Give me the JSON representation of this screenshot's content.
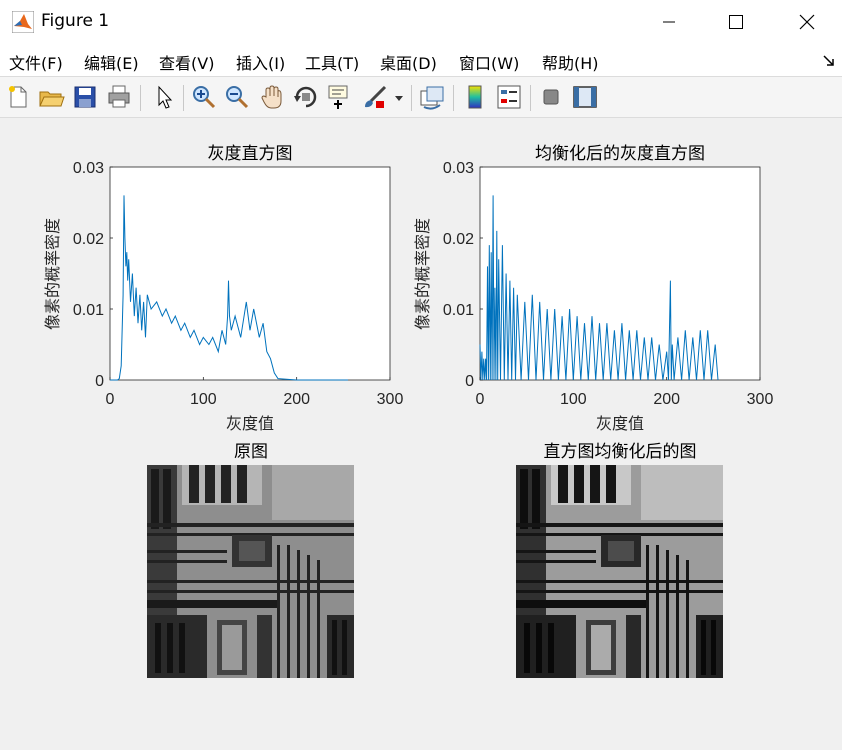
{
  "window": {
    "title": "Figure 1"
  },
  "menu": [
    {
      "label": "文件(F)"
    },
    {
      "label": "编辑(E)"
    },
    {
      "label": "查看(V)"
    },
    {
      "label": "插入(I)"
    },
    {
      "label": "工具(T)"
    },
    {
      "label": "桌面(D)"
    },
    {
      "label": "窗口(W)"
    },
    {
      "label": "帮助(H)"
    }
  ],
  "toolbar": [
    {
      "icon": "new-figure-icon"
    },
    {
      "icon": "open-file-icon"
    },
    {
      "icon": "save-icon"
    },
    {
      "icon": "print-icon"
    },
    {
      "icon": "select-pointer-icon"
    },
    {
      "icon": "zoom-in-icon"
    },
    {
      "icon": "zoom-out-icon"
    },
    {
      "icon": "pan-hand-icon"
    },
    {
      "icon": "rotate-3d-icon"
    },
    {
      "icon": "data-cursor-icon"
    },
    {
      "icon": "brush-icon"
    },
    {
      "icon": "link-plot-icon"
    },
    {
      "icon": "colorbar-icon"
    },
    {
      "icon": "legend-icon"
    },
    {
      "icon": "hide-plot-tools-icon"
    },
    {
      "icon": "show-plot-tools-icon"
    }
  ],
  "colors": {
    "line": "#0072bd",
    "axes_bg": "#ffffff",
    "figure_bg": "#f0f0f0"
  },
  "chart_data": [
    {
      "type": "line",
      "title": "灰度直方图",
      "xlabel": "灰度值",
      "ylabel": "像素的概率密度",
      "xlim": [
        0,
        300
      ],
      "ylim": [
        0,
        0.03
      ],
      "xticks": [
        "0",
        "100",
        "200",
        "300"
      ],
      "yticks": [
        "0",
        "0.01",
        "0.02",
        "0.03"
      ],
      "x": [
        0,
        8,
        10,
        12,
        14,
        15,
        16,
        17,
        18,
        19,
        20,
        22,
        24,
        26,
        28,
        30,
        32,
        34,
        36,
        38,
        40,
        44,
        50,
        56,
        60,
        66,
        70,
        76,
        80,
        86,
        90,
        96,
        100,
        106,
        110,
        116,
        120,
        124,
        126,
        127,
        128,
        130,
        134,
        140,
        146,
        150,
        154,
        160,
        164,
        168,
        172,
        176,
        180,
        200,
        255
      ],
      "y": [
        0,
        0,
        0.0002,
        0.002,
        0.012,
        0.026,
        0.02,
        0.016,
        0.018,
        0.014,
        0.017,
        0.011,
        0.015,
        0.009,
        0.013,
        0.008,
        0.012,
        0.007,
        0.011,
        0.006,
        0.012,
        0.01,
        0.011,
        0.009,
        0.01,
        0.008,
        0.009,
        0.007,
        0.008,
        0.006,
        0.007,
        0.005,
        0.006,
        0.005,
        0.006,
        0.004,
        0.007,
        0.005,
        0.009,
        0.014,
        0.009,
        0.007,
        0.009,
        0.006,
        0.011,
        0.007,
        0.01,
        0.006,
        0.008,
        0.004,
        0.003,
        0.001,
        0.0002,
        0,
        0
      ]
    },
    {
      "type": "line",
      "title": "均衡化后的灰度直方图",
      "xlabel": "灰度值",
      "ylabel": "像素的概率密度",
      "xlim": [
        0,
        300
      ],
      "ylim": [
        0,
        0.03
      ],
      "xticks": [
        "0",
        "100",
        "200",
        "300"
      ],
      "yticks": [
        "0",
        "0.01",
        "0.02",
        "0.03"
      ],
      "x": [
        0,
        1,
        2,
        3,
        4,
        5,
        6,
        7,
        8,
        9,
        10,
        11,
        12,
        13,
        14,
        15,
        16,
        17,
        18,
        19,
        20,
        22,
        24,
        26,
        28,
        30,
        32,
        34,
        36,
        38,
        40,
        44,
        48,
        52,
        56,
        60,
        64,
        68,
        72,
        76,
        80,
        84,
        88,
        92,
        96,
        100,
        104,
        108,
        112,
        116,
        120,
        124,
        128,
        132,
        136,
        140,
        144,
        148,
        152,
        156,
        160,
        164,
        168,
        172,
        176,
        180,
        184,
        188,
        192,
        196,
        200,
        202,
        204,
        205,
        206,
        208,
        212,
        216,
        220,
        224,
        228,
        232,
        236,
        240,
        244,
        248,
        252,
        255
      ],
      "y": [
        0.005,
        0,
        0.004,
        0,
        0.003,
        0,
        0.003,
        0,
        0.016,
        0,
        0.019,
        0,
        0.018,
        0,
        0.026,
        0,
        0.013,
        0,
        0.021,
        0,
        0.017,
        0,
        0.019,
        0,
        0.015,
        0,
        0.014,
        0,
        0.013,
        0,
        0.012,
        0,
        0.011,
        0,
        0.012,
        0,
        0.011,
        0,
        0.01,
        0,
        0.01,
        0,
        0.009,
        0,
        0.01,
        0,
        0.009,
        0,
        0.008,
        0,
        0.009,
        0,
        0.008,
        0,
        0.008,
        0,
        0.007,
        0,
        0.008,
        0,
        0.007,
        0,
        0.007,
        0,
        0.006,
        0,
        0.006,
        0,
        0.005,
        0,
        0.004,
        0,
        0.014,
        0,
        0.005,
        0,
        0.006,
        0,
        0.007,
        0,
        0.006,
        0,
        0.007,
        0,
        0.007,
        0,
        0.005,
        0
      ]
    }
  ],
  "images": [
    {
      "title": "原图"
    },
    {
      "title": "直方图均衡化后的图"
    }
  ]
}
